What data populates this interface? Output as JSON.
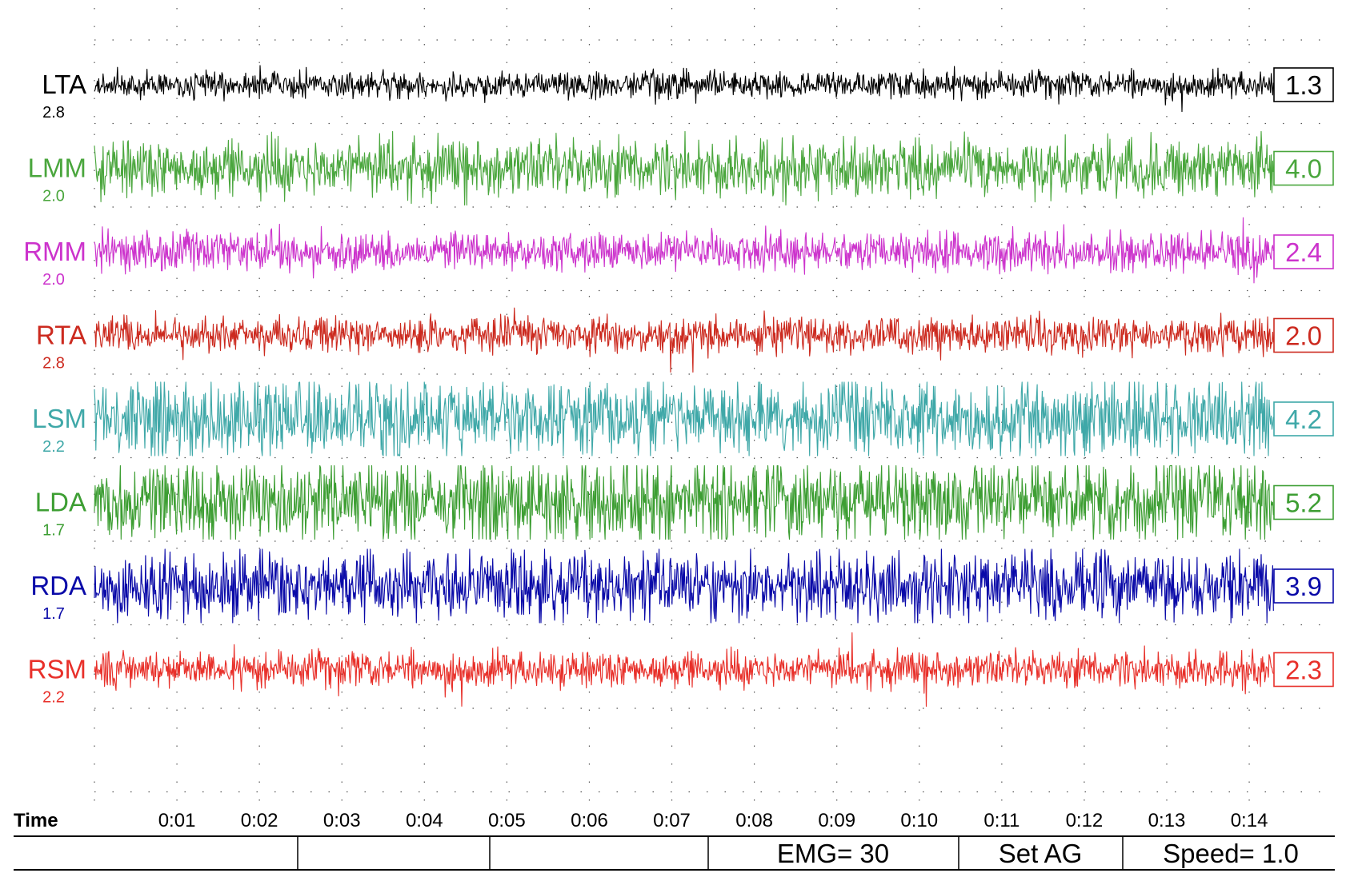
{
  "chart_data": {
    "type": "line",
    "title": "",
    "xlabel": "Time",
    "x_ticks": [
      "0:01",
      "0:02",
      "0:03",
      "0:04",
      "0:05",
      "0:06",
      "0:07",
      "0:08",
      "0:09",
      "0:10",
      "0:11",
      "0:12",
      "0:13",
      "0:14"
    ],
    "x_range_seconds": [
      0,
      14.3
    ],
    "grid": "dotted",
    "series": [
      {
        "name": "LTA",
        "gain": "2.8",
        "value": "1.3",
        "color": "#000000",
        "amplitude": 0.55
      },
      {
        "name": "LMM",
        "gain": "2.0",
        "value": "4.0",
        "color": "#4aa63d",
        "amplitude": 1.2
      },
      {
        "name": "RMM",
        "gain": "2.0",
        "value": "2.4",
        "color": "#cc33cc",
        "amplitude": 0.8
      },
      {
        "name": "RTA",
        "gain": "2.8",
        "value": "2.0",
        "color": "#cc2a1f",
        "amplitude": 0.75
      },
      {
        "name": "LSM",
        "gain": "2.2",
        "value": "4.2",
        "color": "#3fa8a8",
        "amplitude": 1.55
      },
      {
        "name": "LDA",
        "gain": "1.7",
        "value": "5.2",
        "color": "#3d9e33",
        "amplitude": 1.7
      },
      {
        "name": "RDA",
        "gain": "1.7",
        "value": "3.9",
        "color": "#0a0aa8",
        "amplitude": 1.4
      },
      {
        "name": "RSM",
        "gain": "2.2",
        "value": "2.3",
        "color": "#e8302a",
        "amplitude": 0.75
      }
    ]
  },
  "status_bar": {
    "emg": "EMG= 30",
    "set_ag": "Set AG",
    "speed": "Speed= 1.0"
  }
}
